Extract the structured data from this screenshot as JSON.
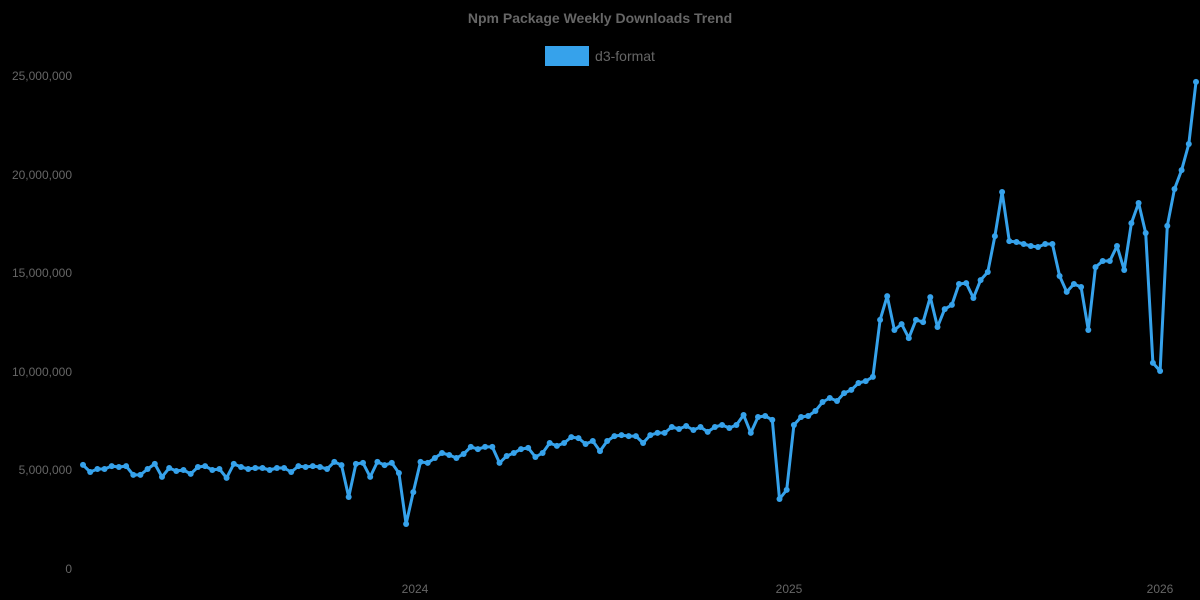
{
  "chart_data": {
    "type": "line",
    "title": "Npm Package Weekly Downloads Trend",
    "xlabel": "",
    "ylabel": "",
    "ylim": [
      0,
      25000000
    ],
    "grid": false,
    "legend_position": "top",
    "y_ticks": [
      "0",
      "5,000,000",
      "10,000,000",
      "15,000,000",
      "20,000,000",
      "25,000,000"
    ],
    "x_ticks": [
      "2024",
      "2025",
      "2026"
    ],
    "series": [
      {
        "name": "d3-format",
        "color": "#36a2eb",
        "values": [
          5280000,
          4920000,
          5070000,
          5070000,
          5220000,
          5170000,
          5220000,
          4770000,
          4770000,
          5070000,
          5330000,
          4670000,
          5120000,
          4970000,
          5020000,
          4820000,
          5170000,
          5220000,
          5020000,
          5070000,
          4620000,
          5330000,
          5170000,
          5070000,
          5120000,
          5120000,
          5020000,
          5120000,
          5120000,
          4920000,
          5220000,
          5170000,
          5220000,
          5170000,
          5070000,
          5430000,
          5270000,
          3650000,
          5330000,
          5380000,
          4670000,
          5430000,
          5270000,
          5380000,
          4870000,
          2280000,
          3900000,
          5430000,
          5380000,
          5630000,
          5880000,
          5780000,
          5630000,
          5830000,
          6190000,
          6080000,
          6190000,
          6190000,
          5380000,
          5730000,
          5880000,
          6080000,
          6140000,
          5680000,
          5880000,
          6390000,
          6240000,
          6390000,
          6690000,
          6640000,
          6340000,
          6490000,
          5980000,
          6490000,
          6740000,
          6790000,
          6740000,
          6740000,
          6390000,
          6790000,
          6900000,
          6900000,
          7200000,
          7100000,
          7250000,
          7050000,
          7200000,
          6950000,
          7200000,
          7300000,
          7150000,
          7300000,
          7810000,
          6900000,
          7710000,
          7760000,
          7560000,
          3550000,
          4010000,
          7300000,
          7710000,
          7760000,
          8010000,
          8470000,
          8670000,
          8520000,
          8920000,
          9080000,
          9430000,
          9530000,
          9740000,
          12630000,
          13840000,
          12120000,
          12420000,
          11710000,
          12630000,
          12520000,
          13790000,
          12270000,
          13180000,
          13390000,
          14450000,
          14500000,
          13740000,
          14650000,
          15060000,
          16880000,
          19120000,
          16630000,
          16580000,
          16480000,
          16380000,
          16330000,
          16480000,
          16480000,
          14860000,
          14050000,
          14450000,
          14300000,
          12120000,
          15310000,
          15620000,
          15620000,
          16380000,
          15160000,
          17540000,
          18560000,
          17040000,
          10450000,
          10040000,
          17400000,
          19270000,
          20230000,
          21550000,
          24700000
        ]
      }
    ]
  },
  "labels": {
    "title": "Npm Package Weekly Downloads Trend",
    "legend": "d3-format",
    "y": [
      "25,000,000",
      "20,000,000",
      "15,000,000",
      "10,000,000",
      "5,000,000",
      "0"
    ],
    "x": [
      "2024",
      "2025",
      "2026"
    ]
  }
}
